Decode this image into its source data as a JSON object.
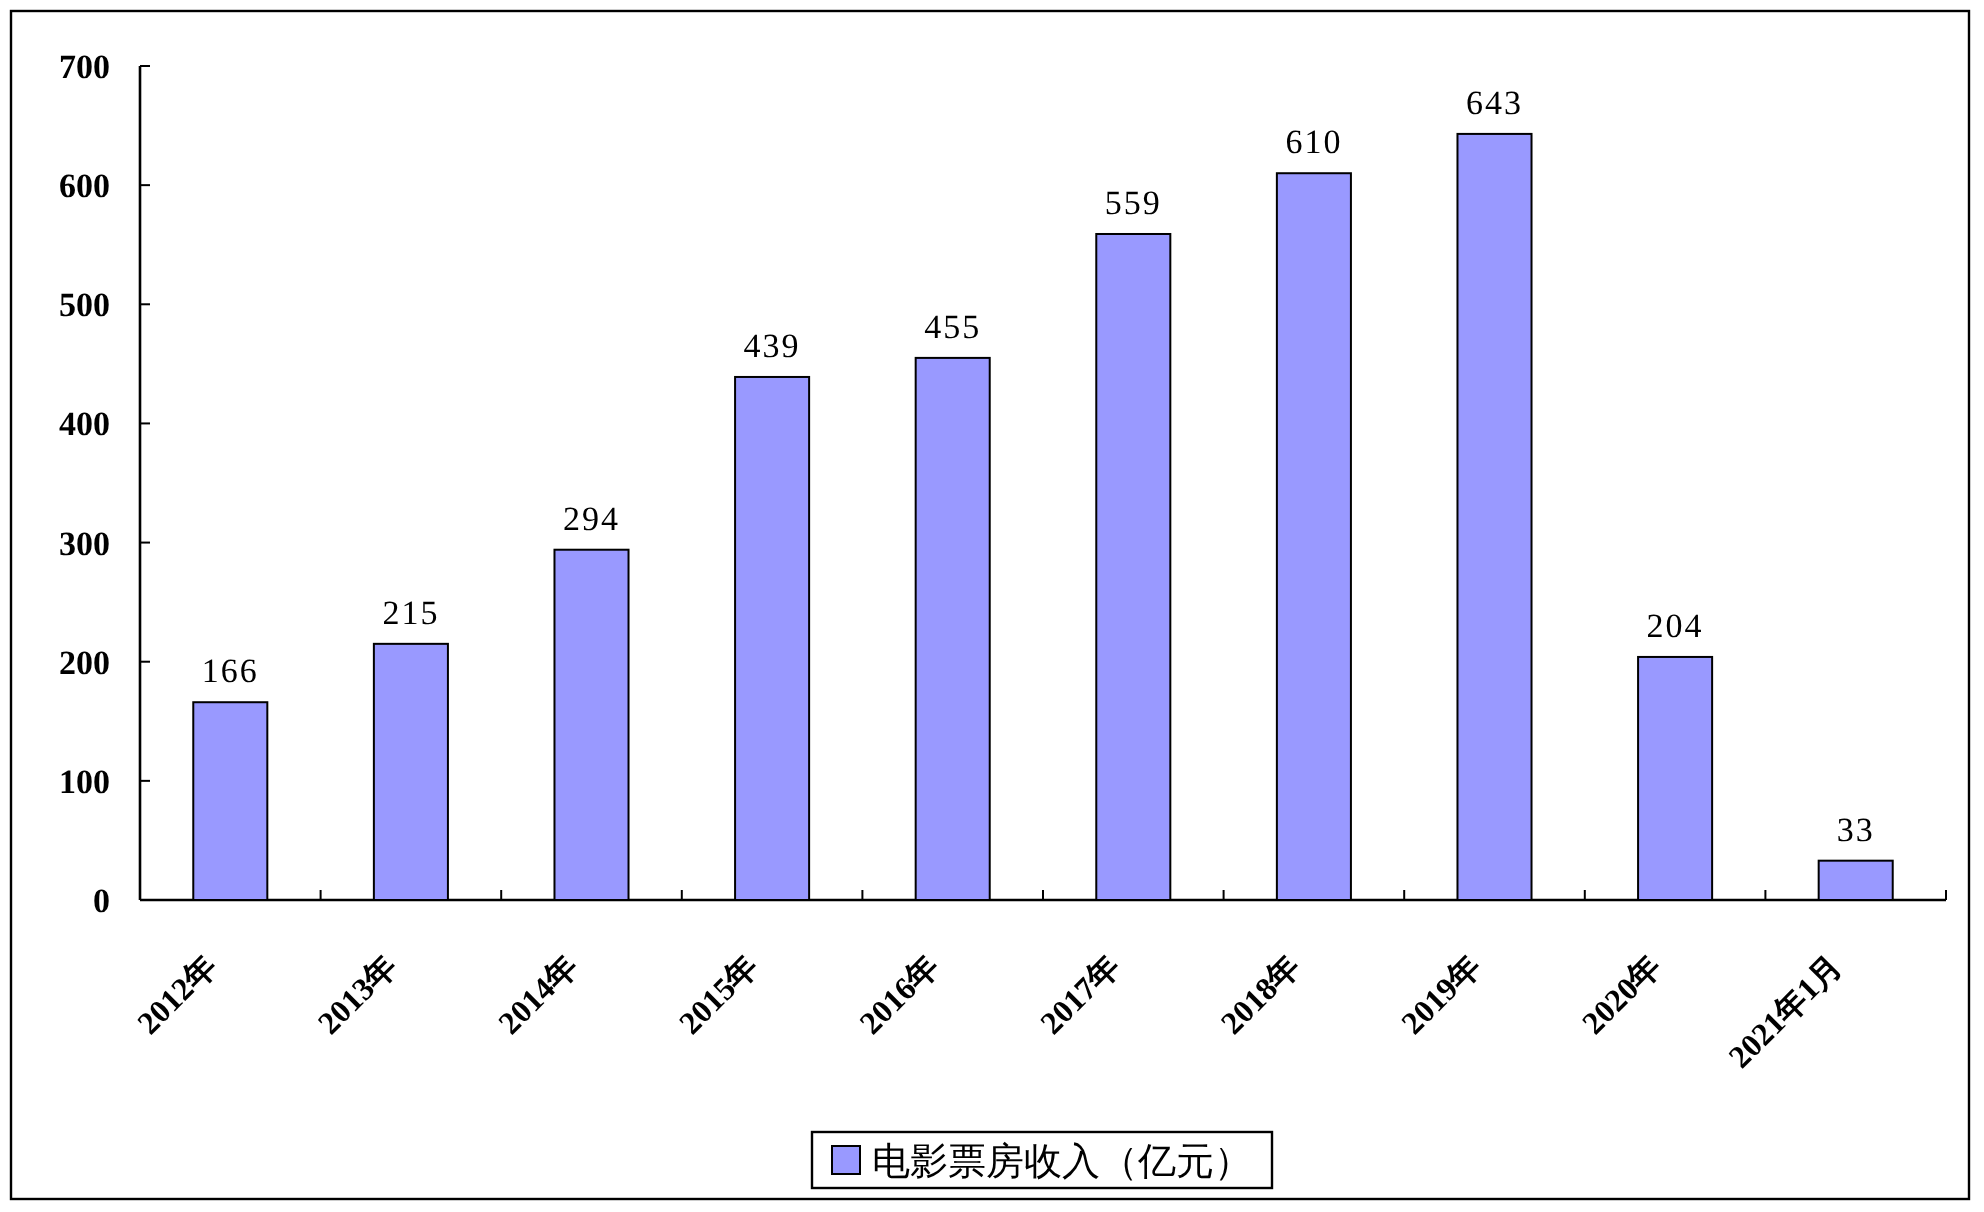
{
  "chart_data": {
    "type": "bar",
    "categories": [
      "2012年",
      "2013年",
      "2014年",
      "2015年",
      "2016年",
      "2017年",
      "2018年",
      "2019年",
      "2020年",
      "2021年1月"
    ],
    "series": [
      {
        "name": "电影票房收入（亿元）",
        "color": "#9999ff",
        "values": [
          166,
          215,
          294,
          439,
          455,
          559,
          610,
          643,
          204,
          33
        ]
      }
    ],
    "ylim": [
      0,
      700
    ],
    "yticks": [
      0,
      100,
      200,
      300,
      400,
      500,
      600,
      700
    ],
    "data_labels": true,
    "legend": "bottom"
  }
}
